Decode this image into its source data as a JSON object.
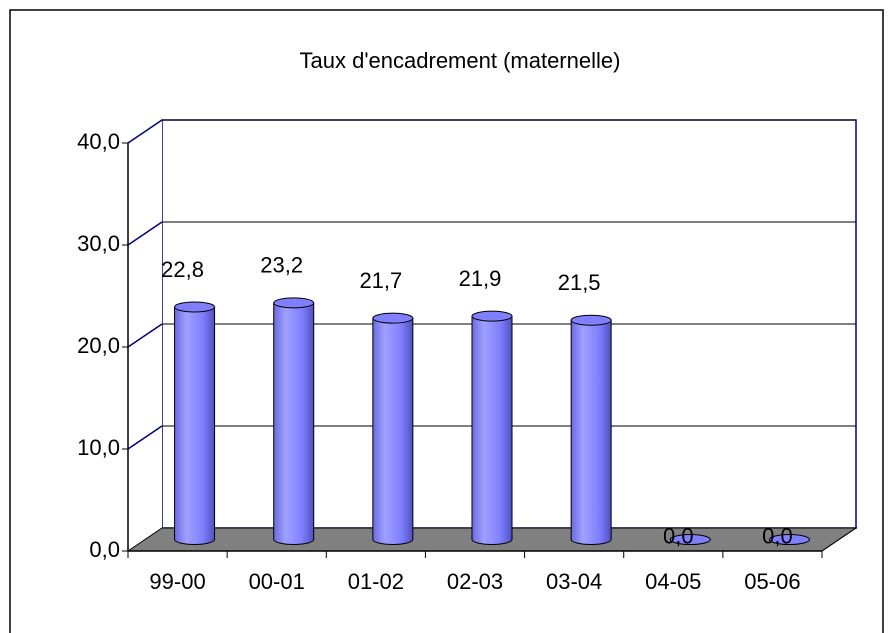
{
  "chart_data": {
    "type": "bar",
    "title": "Taux d'encadrement (maternelle)",
    "categories": [
      "99-00",
      "00-01",
      "01-02",
      "02-03",
      "03-04",
      "04-05",
      "05-06"
    ],
    "values": [
      22.8,
      23.2,
      21.7,
      21.9,
      21.5,
      0,
      0
    ],
    "value_labels": [
      "22,8",
      "23,2",
      "21,7",
      "21,9",
      "21,5",
      "0,0",
      "0,0"
    ],
    "color": "#8080ff",
    "ylim": [
      0,
      40
    ],
    "yticks": [
      {
        "value": 0,
        "label": "0,0"
      },
      {
        "value": 10,
        "label": "10,0"
      },
      {
        "value": 20,
        "label": "20,0"
      },
      {
        "value": 30,
        "label": "30,0"
      },
      {
        "value": 40,
        "label": "40,0"
      }
    ],
    "grid": true
  }
}
